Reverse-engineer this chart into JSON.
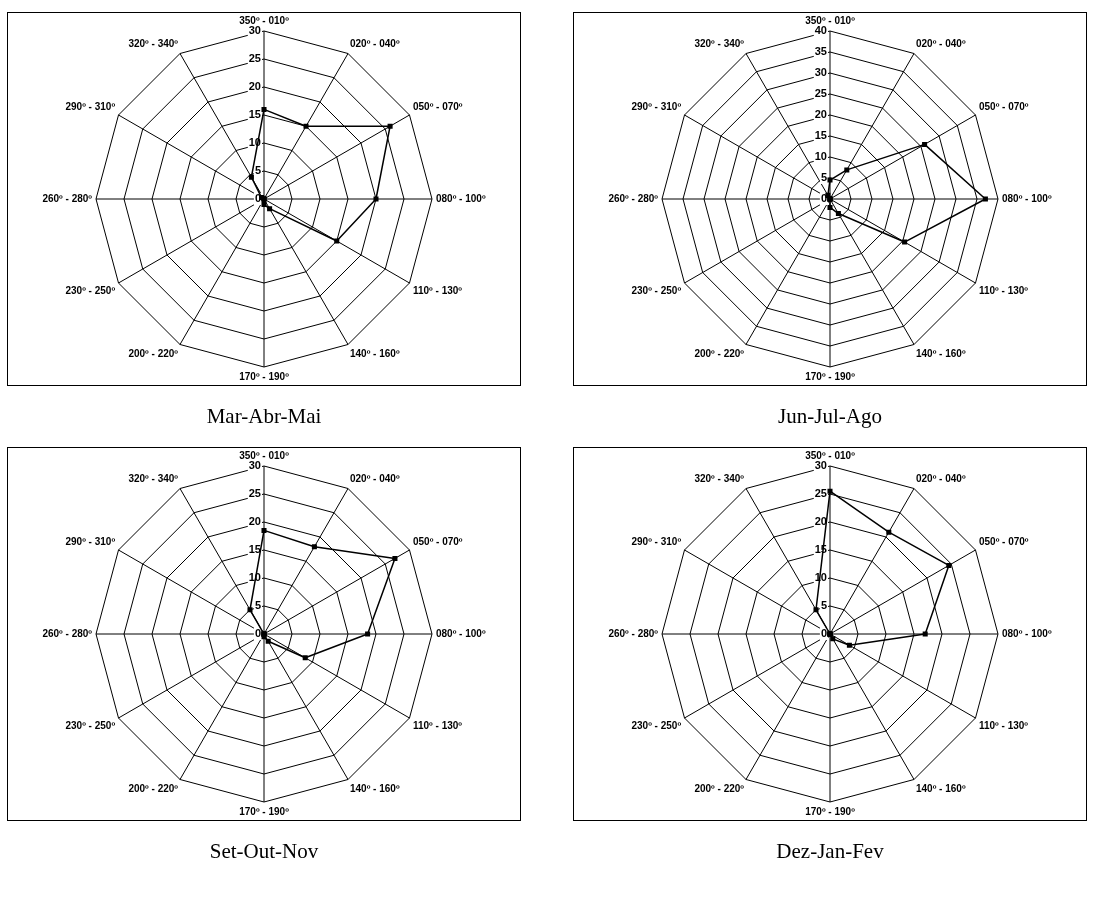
{
  "chart_data": [
    {
      "type": "radar",
      "title": "Mar-Abr-Mai",
      "categories": [
        "350º - 010º",
        "020º - 040º",
        "050º - 070º",
        "080º - 100º",
        "110º - 130º",
        "140º - 160º",
        "170º - 190º",
        "200º - 220º",
        "230º - 250º",
        "260º - 280º",
        "290º - 310º",
        "320º - 340º"
      ],
      "series": [
        {
          "color": "#000000",
          "values": [
            16,
            15,
            26,
            20,
            15,
            2,
            1,
            0,
            0,
            0,
            0.5,
            4.5
          ]
        }
      ],
      "ylim": [
        0,
        30
      ],
      "yticks": [
        0,
        5,
        10,
        15,
        20,
        25,
        30
      ],
      "grid": true,
      "legend": false,
      "marker": "square"
    },
    {
      "type": "radar",
      "title": "Jun-Jul-Ago",
      "categories": [
        "350º - 010º",
        "020º - 040º",
        "050º - 070º",
        "080º - 100º",
        "110º - 130º",
        "140º - 160º",
        "170º - 190º",
        "200º - 220º",
        "230º - 250º",
        "260º - 280º",
        "290º - 310º",
        "320º - 340º"
      ],
      "series": [
        {
          "color": "#000000",
          "values": [
            4.5,
            8,
            26,
            37,
            20.5,
            4,
            2,
            0,
            0,
            0,
            0,
            1
          ]
        }
      ],
      "ylim": [
        0,
        40
      ],
      "yticks": [
        0,
        5,
        10,
        15,
        20,
        25,
        30,
        35,
        40
      ],
      "grid": true,
      "legend": false,
      "marker": "square"
    },
    {
      "type": "radar",
      "title": "Set-Out-Nov",
      "categories": [
        "350º - 010º",
        "020º - 040º",
        "050º - 070º",
        "080º - 100º",
        "110º - 130º",
        "140º - 160º",
        "170º - 190º",
        "200º - 220º",
        "230º - 250º",
        "260º - 280º",
        "290º - 310º",
        "320º - 340º"
      ],
      "series": [
        {
          "color": "#000000",
          "values": [
            18.5,
            18,
            27,
            18.5,
            8.5,
            1.5,
            0.5,
            0,
            0,
            0,
            0,
            5
          ]
        }
      ],
      "ylim": [
        0,
        30
      ],
      "yticks": [
        0,
        5,
        10,
        15,
        20,
        25,
        30
      ],
      "grid": true,
      "legend": false,
      "marker": "square"
    },
    {
      "type": "radar",
      "title": "Dez-Jan-Fev",
      "categories": [
        "350º - 010º",
        "020º - 040º",
        "050º - 070º",
        "080º - 100º",
        "110º - 130º",
        "140º - 160º",
        "170º - 190º",
        "200º - 220º",
        "230º - 250º",
        "260º - 280º",
        "290º - 310º",
        "320º - 340º"
      ],
      "series": [
        {
          "color": "#000000",
          "values": [
            25.5,
            21,
            24.5,
            17,
            4,
            1,
            0,
            0,
            0,
            0,
            0,
            5
          ]
        }
      ],
      "ylim": [
        0,
        30
      ],
      "yticks": [
        0,
        5,
        10,
        15,
        20,
        25,
        30
      ],
      "grid": true,
      "legend": false,
      "marker": "square"
    }
  ]
}
